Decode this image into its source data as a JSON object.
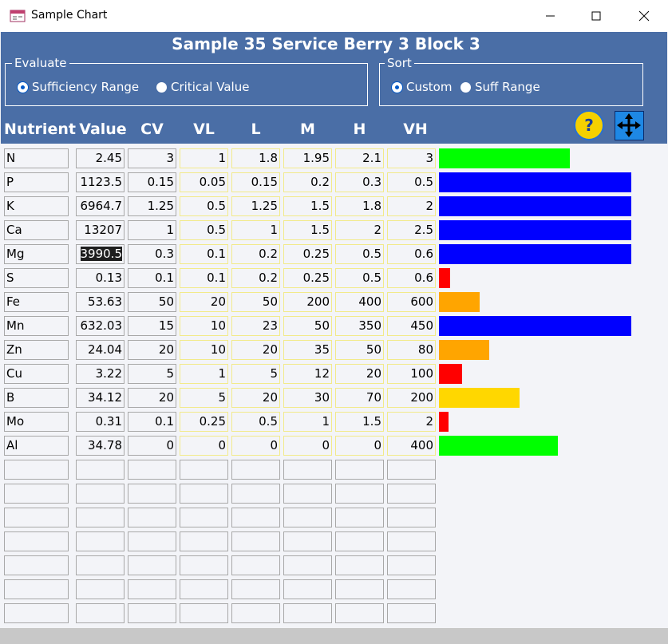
{
  "window": {
    "title": "Sample Chart"
  },
  "header": {
    "title": "Sample 35 Service Berry 3 Block 3"
  },
  "evaluate": {
    "label": "Evaluate",
    "options": [
      "Sufficiency Range",
      "Critical Value"
    ],
    "selected": 0
  },
  "sort": {
    "label": "Sort",
    "options": [
      "Custom",
      "Suff Range"
    ],
    "selected": 0
  },
  "help_label": "?",
  "table": {
    "columns": [
      "Nutrient",
      "Value",
      "CV",
      "VL",
      "L",
      "M",
      "H",
      "VH"
    ],
    "rows": [
      [
        "N",
        2.45,
        3,
        1,
        1.8,
        1.95,
        2.1,
        3
      ],
      [
        "P",
        1123.5,
        0.15,
        0.05,
        0.15,
        0.2,
        0.3,
        0.5
      ],
      [
        "K",
        6964.7,
        1.25,
        0.5,
        1.25,
        1.5,
        1.8,
        2
      ],
      [
        "Ca",
        13207,
        1,
        0.5,
        1,
        1.5,
        2,
        2.5
      ],
      [
        "Mg",
        3990.5,
        0.3,
        0.1,
        0.2,
        0.25,
        0.5,
        0.6
      ],
      [
        "S",
        0.13,
        0.1,
        0.1,
        0.2,
        0.25,
        0.5,
        0.6
      ],
      [
        "Fe",
        53.63,
        50,
        20,
        50,
        200,
        400,
        600
      ],
      [
        "Mn",
        632.03,
        15,
        10,
        23,
        50,
        350,
        450
      ],
      [
        "Zn",
        24.04,
        20,
        10,
        20,
        35,
        50,
        80
      ],
      [
        "Cu",
        3.22,
        5,
        1,
        5,
        12,
        20,
        100
      ],
      [
        "B",
        34.12,
        20,
        5,
        20,
        30,
        70,
        200
      ],
      [
        "Mo",
        0.31,
        0.1,
        0.25,
        0.5,
        1,
        1.5,
        2
      ],
      [
        "Al",
        34.78,
        0,
        0,
        0,
        0,
        0,
        400
      ]
    ],
    "empty_rows": 7,
    "highlighted_cell": [
      4,
      1
    ]
  },
  "bars": {
    "range": [
      0,
      100
    ],
    "values": [
      68,
      100,
      100,
      100,
      100,
      6,
      21,
      100,
      26,
      12,
      42,
      5,
      62
    ],
    "colors": [
      "#00ff00",
      "#0000ff",
      "#0000ff",
      "#0000ff",
      "#0000ff",
      "#ff0000",
      "#ffa500",
      "#0000ff",
      "#ffa500",
      "#ff0000",
      "#ffd700",
      "#ff0000",
      "#00ff00"
    ]
  }
}
